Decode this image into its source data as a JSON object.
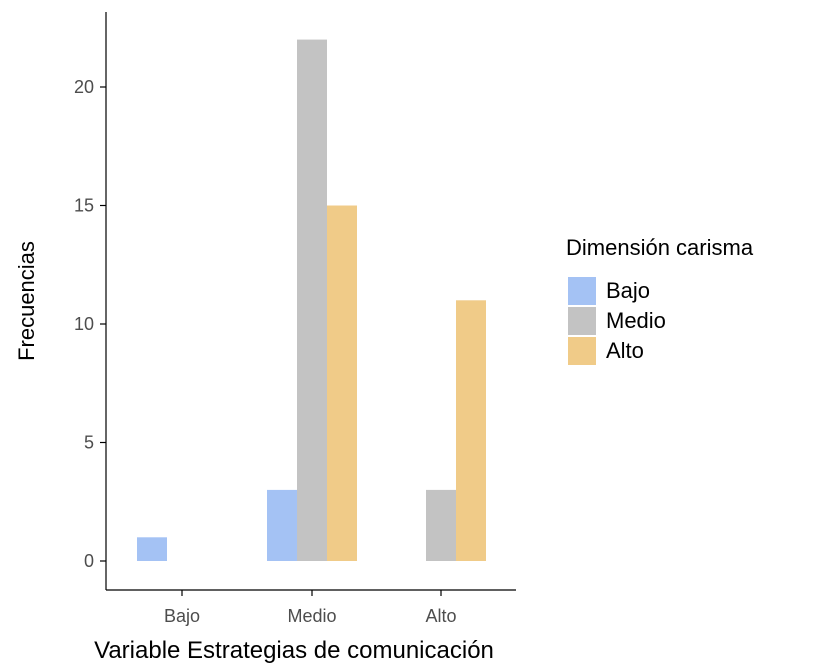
{
  "chart_data": {
    "type": "bar",
    "title": "",
    "xlabel": "Variable Estrategias de comunicación",
    "ylabel": "Frecuencias",
    "categories": [
      "Bajo",
      "Medio",
      "Alto"
    ],
    "series": [
      {
        "name": "Bajo",
        "values": [
          1,
          3,
          0
        ],
        "color": "#a4c2f4"
      },
      {
        "name": "Medio",
        "values": [
          0,
          22,
          3
        ],
        "color": "#c3c3c3"
      },
      {
        "name": "Alto",
        "values": [
          0,
          15,
          11
        ],
        "color": "#f0cb88"
      }
    ],
    "ylim": [
      0,
      23.1
    ],
    "yticks": [
      "0",
      "5",
      "10",
      "15",
      "20"
    ],
    "legend": {
      "title": "Dimensión carisma",
      "placement": "right"
    },
    "grid": false
  }
}
